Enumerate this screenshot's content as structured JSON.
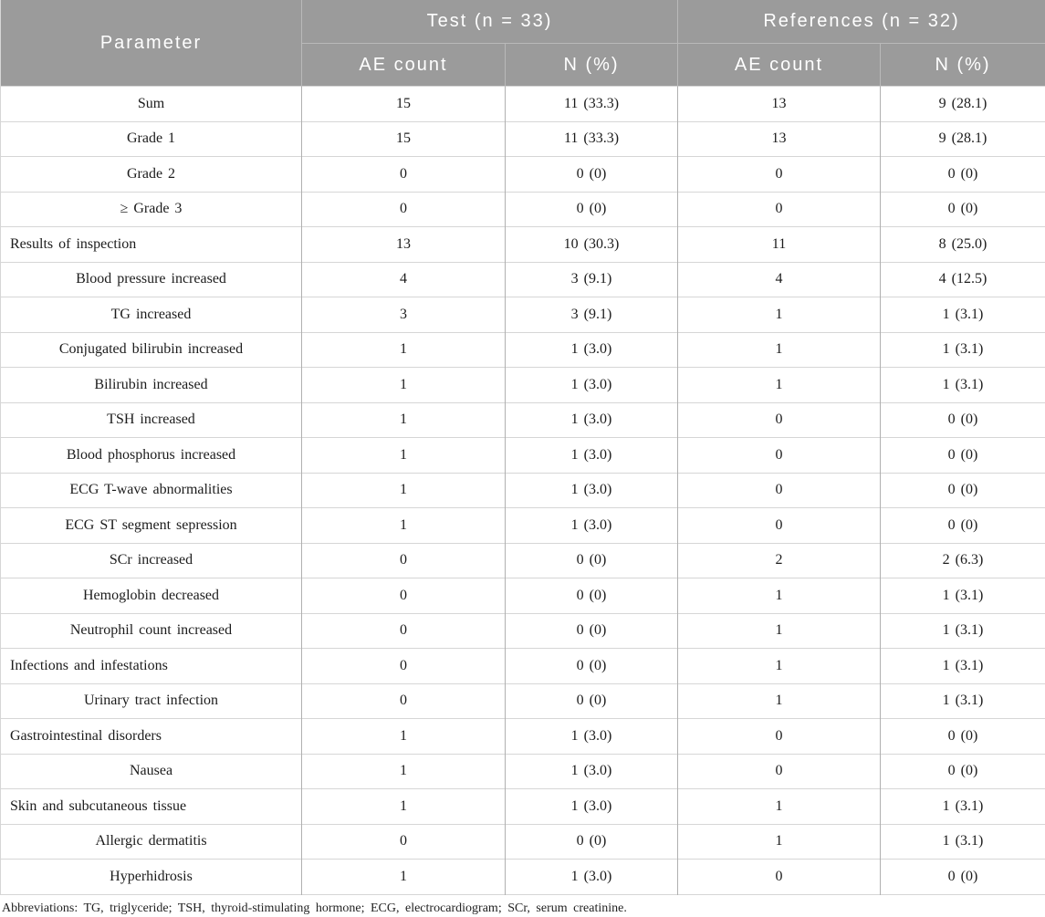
{
  "table": {
    "header": {
      "parameter_label": "Parameter",
      "groups": [
        {
          "label": "Test (n = 33)",
          "subcolumns": [
            "AE count",
            "N (%)"
          ]
        },
        {
          "label": "References (n = 32)",
          "subcolumns": [
            "AE count",
            "N (%)"
          ]
        }
      ]
    },
    "rows": [
      {
        "parameter": "Sum",
        "align": "center",
        "cells": [
          "15",
          "11 (33.3)",
          "13",
          "9 (28.1)"
        ]
      },
      {
        "parameter": "Grade 1",
        "align": "center",
        "cells": [
          "15",
          "11 (33.3)",
          "13",
          "9 (28.1)"
        ]
      },
      {
        "parameter": "Grade 2",
        "align": "center",
        "cells": [
          "0",
          "0 (0)",
          "0",
          "0 (0)"
        ]
      },
      {
        "parameter": "≥ Grade 3",
        "align": "center",
        "cells": [
          "0",
          "0 (0)",
          "0",
          "0 (0)"
        ]
      },
      {
        "parameter": "Results of inspection",
        "align": "left",
        "cells": [
          "13",
          "10 (30.3)",
          "11",
          "8 (25.0)"
        ]
      },
      {
        "parameter": "Blood pressure increased",
        "align": "center",
        "cells": [
          "4",
          "3 (9.1)",
          "4",
          "4 (12.5)"
        ]
      },
      {
        "parameter": "TG increased",
        "align": "center",
        "cells": [
          "3",
          "3 (9.1)",
          "1",
          "1 (3.1)"
        ]
      },
      {
        "parameter": "Conjugated bilirubin increased",
        "align": "center",
        "cells": [
          "1",
          "1 (3.0)",
          "1",
          "1 (3.1)"
        ]
      },
      {
        "parameter": "Bilirubin increased",
        "align": "center",
        "cells": [
          "1",
          "1 (3.0)",
          "1",
          "1 (3.1)"
        ]
      },
      {
        "parameter": "TSH increased",
        "align": "center",
        "cells": [
          "1",
          "1 (3.0)",
          "0",
          "0 (0)"
        ]
      },
      {
        "parameter": "Blood phosphorus increased",
        "align": "center",
        "cells": [
          "1",
          "1 (3.0)",
          "0",
          "0 (0)"
        ]
      },
      {
        "parameter": "ECG T-wave abnormalities",
        "align": "center",
        "cells": [
          "1",
          "1 (3.0)",
          "0",
          "0 (0)"
        ]
      },
      {
        "parameter": "ECG ST segment sepression",
        "align": "center",
        "cells": [
          "1",
          "1 (3.0)",
          "0",
          "0 (0)"
        ]
      },
      {
        "parameter": "SCr increased",
        "align": "center",
        "cells": [
          "0",
          "0 (0)",
          "2",
          "2 (6.3)"
        ]
      },
      {
        "parameter": "Hemoglobin decreased",
        "align": "center",
        "cells": [
          "0",
          "0 (0)",
          "1",
          "1 (3.1)"
        ]
      },
      {
        "parameter": "Neutrophil count increased",
        "align": "center",
        "cells": [
          "0",
          "0 (0)",
          "1",
          "1 (3.1)"
        ]
      },
      {
        "parameter": "Infections and infestations",
        "align": "left",
        "cells": [
          "0",
          "0 (0)",
          "1",
          "1 (3.1)"
        ]
      },
      {
        "parameter": "Urinary tract infection",
        "align": "center",
        "cells": [
          "0",
          "0 (0)",
          "1",
          "1 (3.1)"
        ]
      },
      {
        "parameter": "Gastrointestinal disorders",
        "align": "left",
        "cells": [
          "1",
          "1 (3.0)",
          "0",
          "0 (0)"
        ]
      },
      {
        "parameter": "Nausea",
        "align": "center",
        "cells": [
          "1",
          "1 (3.0)",
          "0",
          "0 (0)"
        ]
      },
      {
        "parameter": "Skin and subcutaneous tissue",
        "align": "left",
        "cells": [
          "1",
          "1 (3.0)",
          "1",
          "1 (3.1)"
        ]
      },
      {
        "parameter": "Allergic dermatitis",
        "align": "center",
        "cells": [
          "0",
          "0 (0)",
          "1",
          "1 (3.1)"
        ]
      },
      {
        "parameter": "Hyperhidrosis",
        "align": "center",
        "cells": [
          "1",
          "1 (3.0)",
          "0",
          "0 (0)"
        ]
      }
    ],
    "footnote": "Abbreviations: TG, triglyceride; TSH, thyroid-stimulating hormone; ECG, electrocardiogram; SCr, serum creatinine."
  },
  "colors": {
    "header_bg": "#9b9b9b",
    "header_text": "#ffffff",
    "header_divider": "#b9b9b9",
    "row_border": "#d6d6d6",
    "column_border": "#b0b0b0",
    "body_text": "#1c1c1c"
  }
}
